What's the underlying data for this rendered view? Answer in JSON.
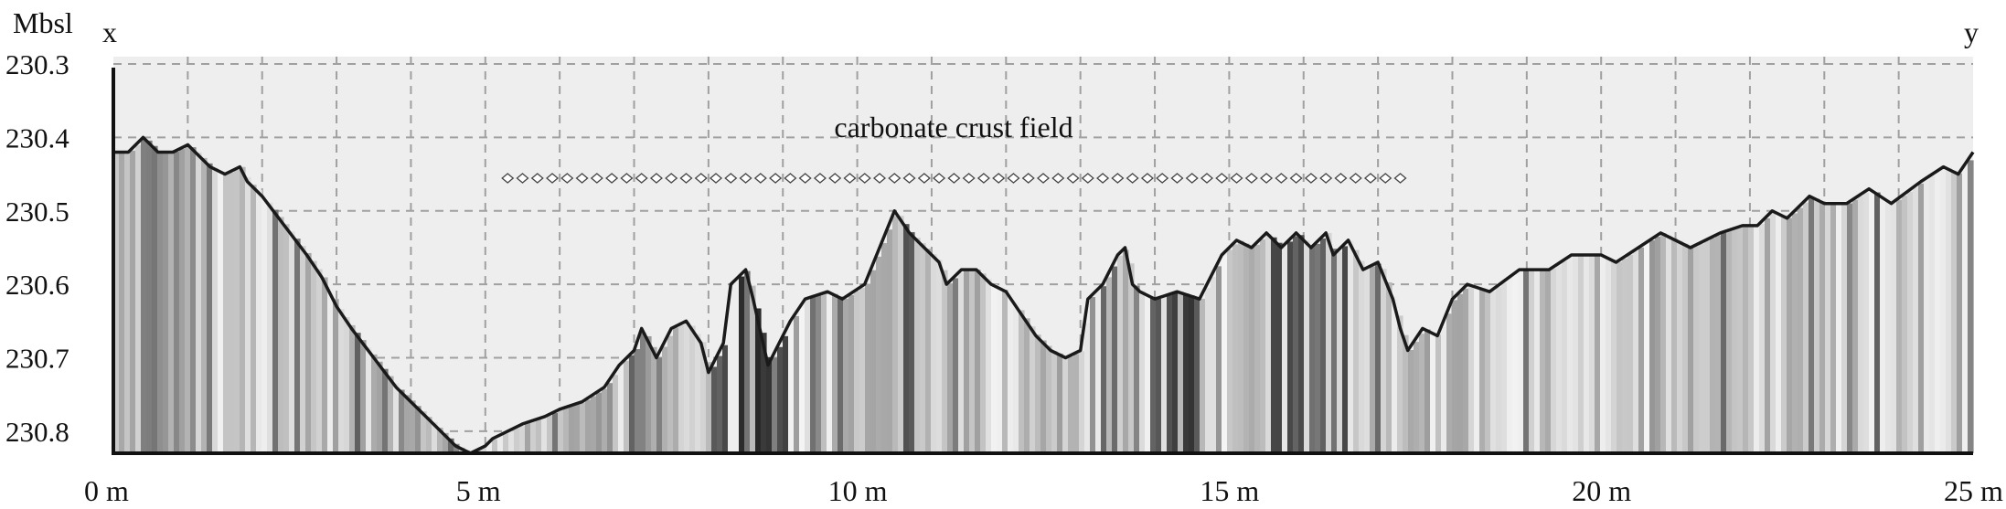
{
  "chart_data": {
    "type": "line",
    "ylabel": "Mbsl",
    "xlabel": "",
    "start_label": "x",
    "end_label": "y",
    "annotation": "carbonate crust field",
    "annotation_range": [
      5.3,
      17.4
    ],
    "xlim": [
      0,
      25
    ],
    "ylim": [
      230.83,
      230.29
    ],
    "y_inverted": true,
    "grid": true,
    "x_ticks": [
      0,
      5,
      10,
      15,
      20,
      25
    ],
    "x_tick_labels": [
      "0 m",
      "5 m",
      "10 m",
      "15 m",
      "20 m",
      "25 m"
    ],
    "y_ticks": [
      230.3,
      230.4,
      230.5,
      230.6,
      230.7,
      230.8
    ],
    "y_tick_labels": [
      "230.3",
      "230.4",
      "230.5",
      "230.6",
      "230.7",
      "230.8"
    ],
    "colors": {
      "background": "#eeeeee",
      "grid": "#a0a0a0",
      "line": "#1a1a1a",
      "axis": "#111111"
    },
    "series": [
      {
        "x": [
          0,
          0.2,
          0.4,
          0.5,
          0.6,
          0.8,
          1.0,
          1.1,
          1.3,
          1.5,
          1.7,
          1.8,
          2.0,
          2.3,
          2.6,
          2.8,
          3.0,
          3.2,
          3.5,
          3.8,
          4.0,
          4.2,
          4.4,
          4.6,
          4.8,
          5.0,
          5.1,
          5.3,
          5.5,
          5.8,
          6.0,
          6.3,
          6.6,
          6.8,
          7.0,
          7.1,
          7.3,
          7.5,
          7.7,
          7.9,
          8.0,
          8.2,
          8.3,
          8.5,
          8.6,
          8.8,
          8.9,
          9.1,
          9.3,
          9.6,
          9.8,
          10.1,
          10.3,
          10.5,
          10.7,
          10.9,
          11.1,
          11.2,
          11.4,
          11.6,
          11.8,
          12.0,
          12.2,
          12.4,
          12.6,
          12.8,
          13.0,
          13.1,
          13.3,
          13.5,
          13.6,
          13.7,
          13.8,
          14.0,
          14.3,
          14.6,
          14.9,
          15.1,
          15.3,
          15.5,
          15.7,
          15.9,
          16.1,
          16.3,
          16.4,
          16.6,
          16.8,
          17.0,
          17.2,
          17.3,
          17.4,
          17.6,
          17.8,
          18.0,
          18.2,
          18.5,
          18.9,
          19.3,
          19.6,
          20.0,
          20.2,
          20.5,
          20.8,
          21.2,
          21.6,
          21.9,
          22.1,
          22.3,
          22.5,
          22.8,
          23.0,
          23.3,
          23.6,
          23.9,
          24.3,
          24.6,
          24.8,
          25.0
        ],
        "y": [
          230.42,
          230.42,
          230.4,
          230.41,
          230.42,
          230.42,
          230.41,
          230.42,
          230.44,
          230.45,
          230.44,
          230.46,
          230.48,
          230.52,
          230.56,
          230.59,
          230.63,
          230.66,
          230.7,
          230.74,
          230.76,
          230.78,
          230.8,
          230.82,
          230.83,
          230.82,
          230.81,
          230.8,
          230.79,
          230.78,
          230.77,
          230.76,
          230.74,
          230.71,
          230.69,
          230.66,
          230.7,
          230.66,
          230.65,
          230.68,
          230.72,
          230.68,
          230.6,
          230.58,
          230.62,
          230.71,
          230.69,
          230.65,
          230.62,
          230.61,
          230.62,
          230.6,
          230.55,
          230.5,
          230.53,
          230.55,
          230.57,
          230.6,
          230.58,
          230.58,
          230.6,
          230.61,
          230.64,
          230.67,
          230.69,
          230.7,
          230.69,
          230.62,
          230.6,
          230.56,
          230.55,
          230.6,
          230.61,
          230.62,
          230.61,
          230.62,
          230.56,
          230.54,
          230.55,
          230.53,
          230.55,
          230.53,
          230.55,
          230.53,
          230.56,
          230.54,
          230.58,
          230.57,
          230.62,
          230.66,
          230.69,
          230.66,
          230.67,
          230.62,
          230.6,
          230.61,
          230.58,
          230.58,
          230.56,
          230.56,
          230.57,
          230.55,
          230.53,
          230.55,
          230.53,
          230.52,
          230.52,
          230.5,
          230.51,
          230.48,
          230.49,
          230.49,
          230.47,
          230.49,
          230.46,
          230.44,
          230.45,
          230.42
        ]
      }
    ]
  }
}
